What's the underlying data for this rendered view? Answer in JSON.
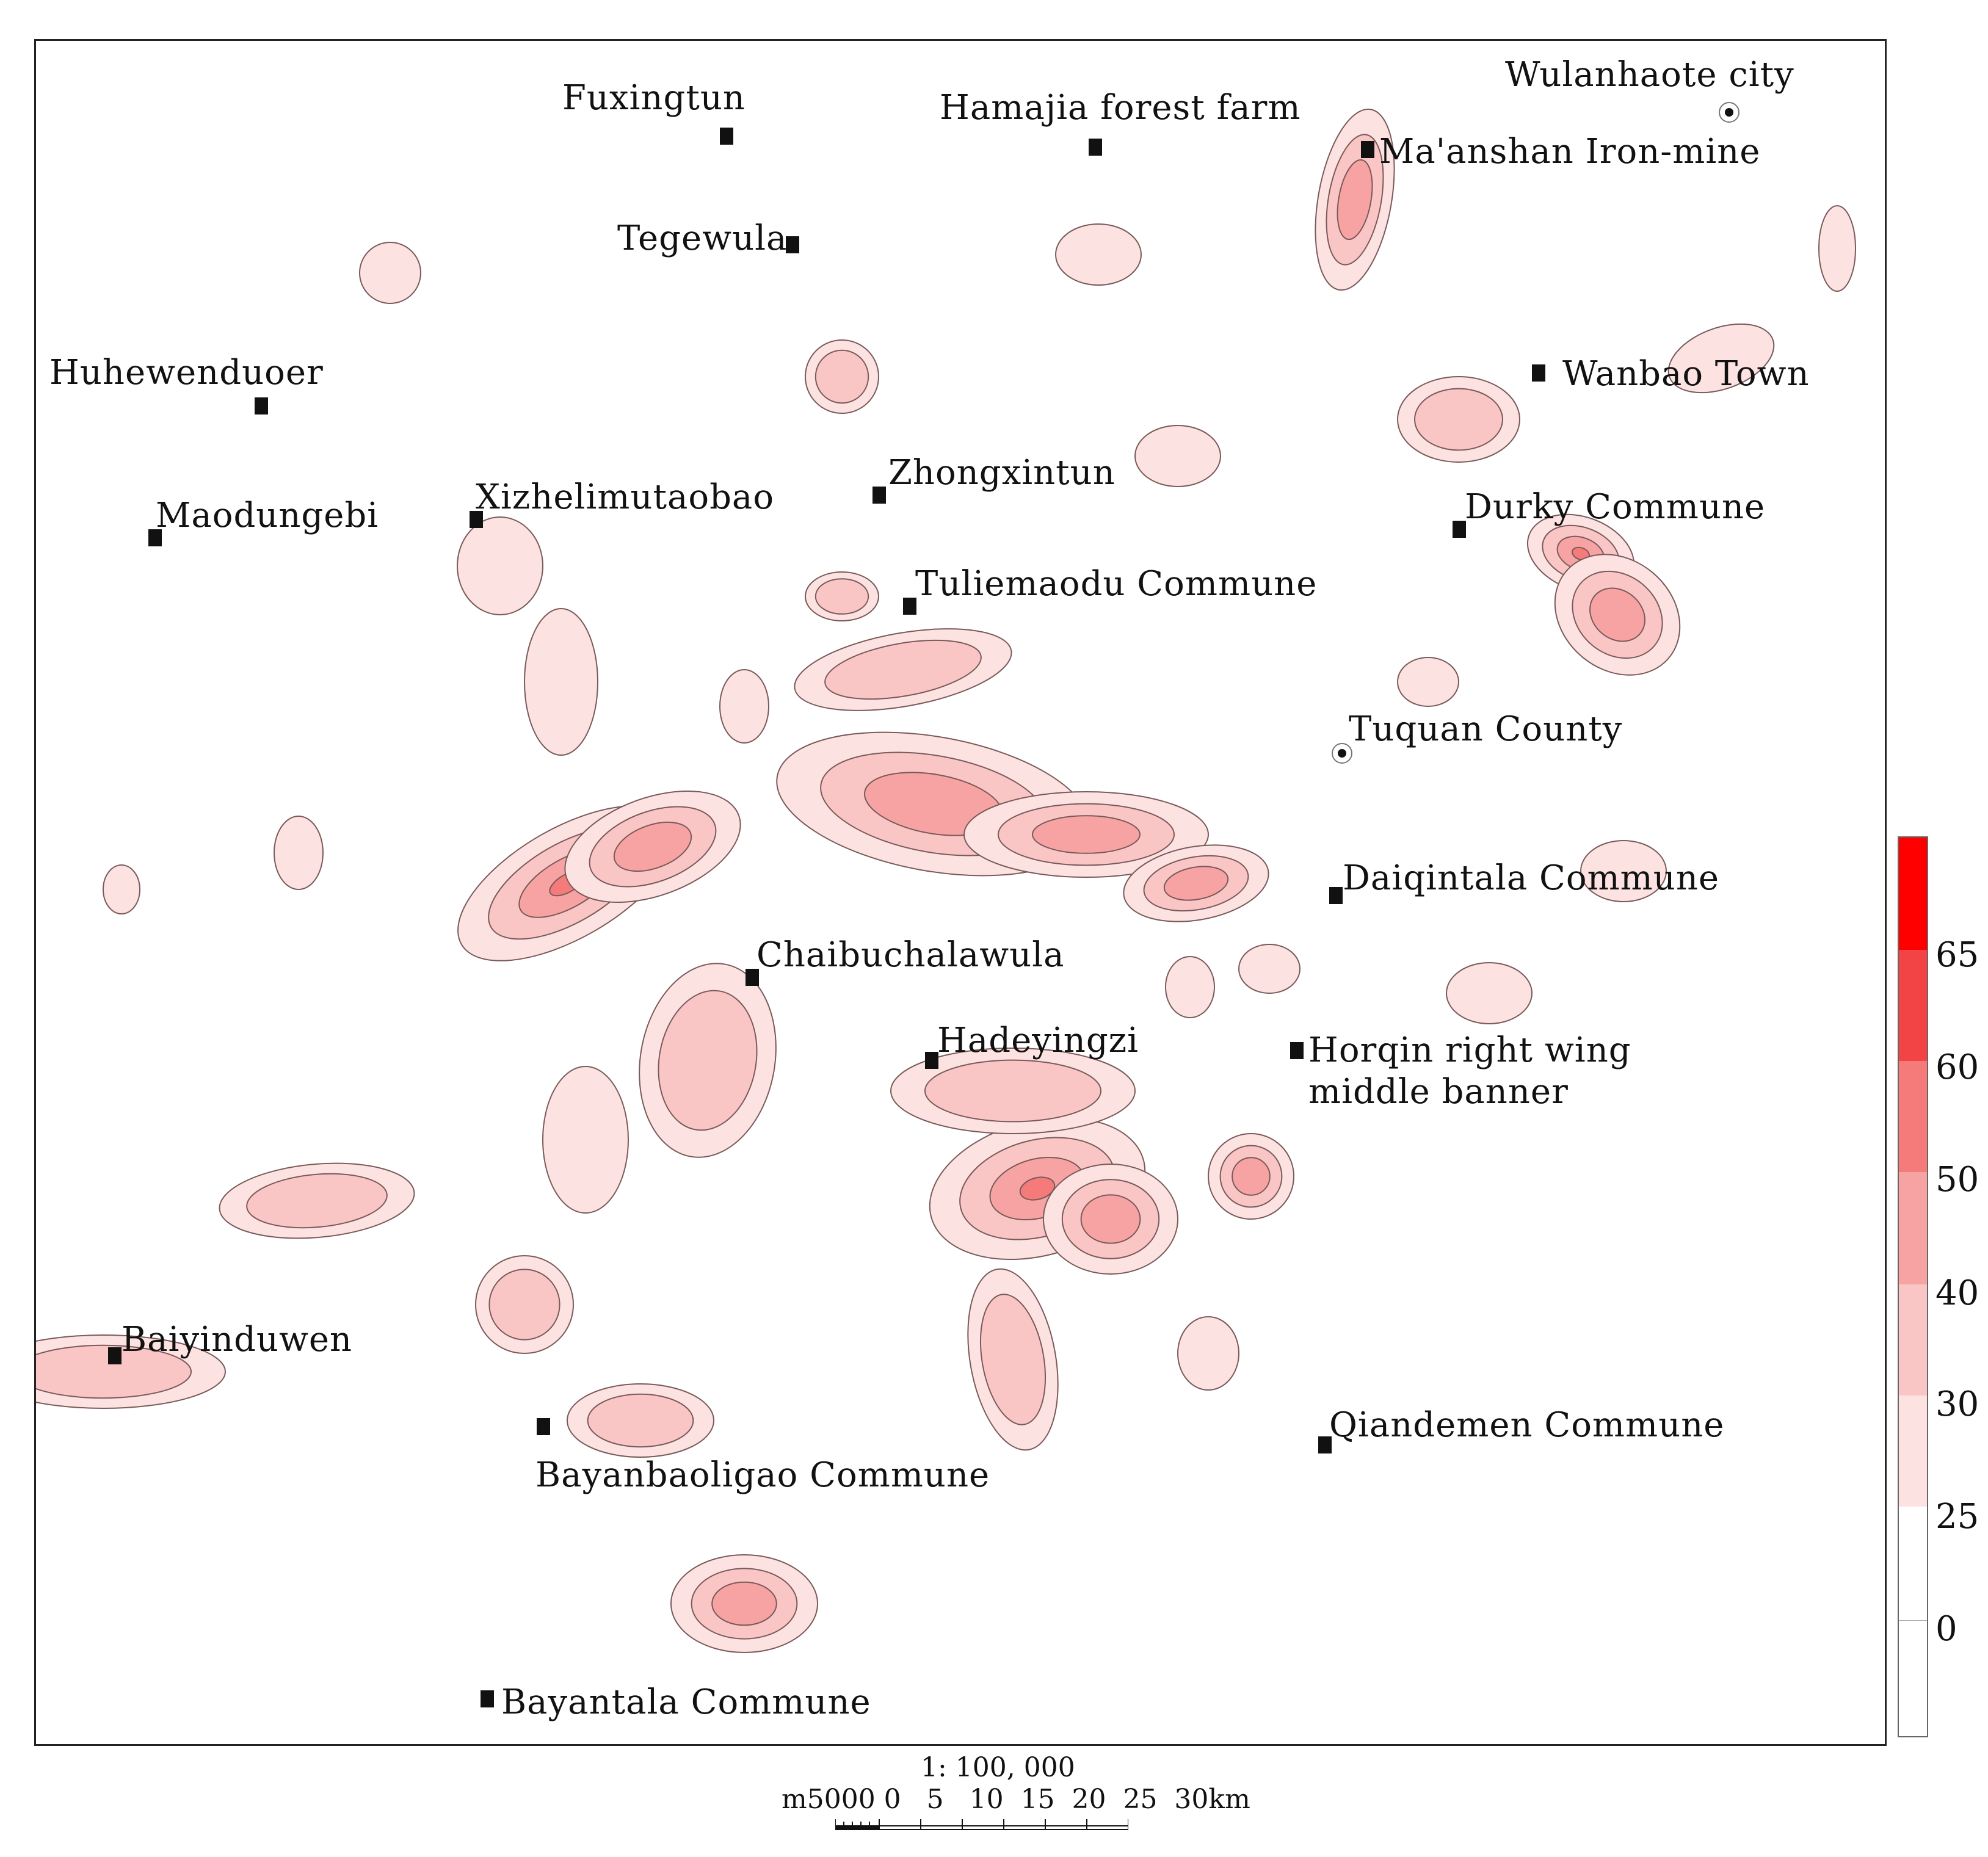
{
  "places": [
    {
      "id": "fuxingtun",
      "name": "Fuxingtun",
      "type": "town"
    },
    {
      "id": "hamajia",
      "name": "Hamajia forest farm",
      "type": "town"
    },
    {
      "id": "wulanhaote",
      "name": "Wulanhaote city",
      "type": "city"
    },
    {
      "id": "maanshan",
      "name": "Ma'anshan Iron-mine",
      "type": "town"
    },
    {
      "id": "tegewula",
      "name": "Tegewula",
      "type": "town"
    },
    {
      "id": "huhewenduoer",
      "name": "Huhewenduoer",
      "type": "town"
    },
    {
      "id": "wanbao",
      "name": "Wanbao Town",
      "type": "town"
    },
    {
      "id": "xizhelimutaobao",
      "name": "Xizhelimutaobao",
      "type": "town"
    },
    {
      "id": "zhongxintun",
      "name": "Zhongxintun",
      "type": "town"
    },
    {
      "id": "maodungebi",
      "name": "Maodungebi",
      "type": "town"
    },
    {
      "id": "durky",
      "name": "Durky Commune",
      "type": "town"
    },
    {
      "id": "tuliemaodu",
      "name": "Tuliemaodu Commune",
      "type": "town"
    },
    {
      "id": "tuquan",
      "name": "Tuquan County",
      "type": "city"
    },
    {
      "id": "daiqintala",
      "name": "Daiqintala Commune",
      "type": "town"
    },
    {
      "id": "chaibuchalawula",
      "name": "Chaibuchalawula",
      "type": "town"
    },
    {
      "id": "hadeyingzi",
      "name": "Hadeyingzi",
      "type": "town"
    },
    {
      "id": "horqin",
      "name": "Horqin right wing",
      "name2": "middle banner",
      "type": "town"
    },
    {
      "id": "baiyinduwen",
      "name": "Baiyinduwen",
      "type": "town"
    },
    {
      "id": "bayanbaoligao",
      "name": "Bayanbaoligao Commune",
      "type": "town"
    },
    {
      "id": "qiandemen",
      "name": "Qiandemen Commune",
      "type": "town"
    },
    {
      "id": "bayantala",
      "name": "Bayantala Commune",
      "type": "town"
    }
  ],
  "legend": {
    "ticks": [
      "65",
      "60",
      "50",
      "40",
      "30",
      "25",
      "0"
    ],
    "colors": [
      "#ff0000",
      "#f24444",
      "#f57b7b",
      "#f7a3a3",
      "#fac5c5",
      "#fde2e2",
      "#ffffff"
    ]
  },
  "scale": {
    "ratio": "1: 100, 000",
    "labels": "m5000 0   5   10  15  20  25  30km"
  },
  "contour_fills": [
    "#fde2e2",
    "#fac5c5",
    "#f7a3a3",
    "#f57b7b",
    "#f24444",
    "#ff0000"
  ]
}
